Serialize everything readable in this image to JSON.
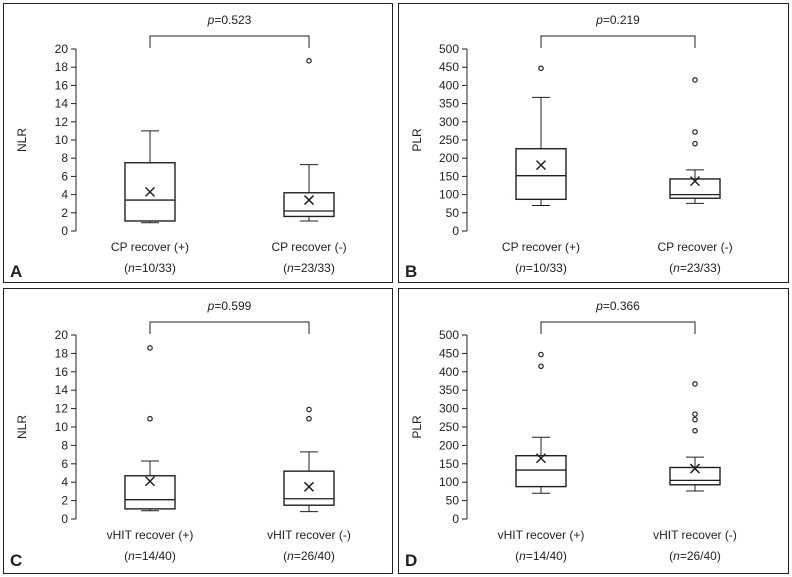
{
  "chart_data": [
    {
      "type": "box",
      "panel_letter": "A",
      "ylabel": "NLR",
      "ylim": [
        0,
        20
      ],
      "yticks": [
        0,
        2,
        4,
        6,
        8,
        10,
        12,
        14,
        16,
        18,
        20
      ],
      "p_prefix": "p",
      "p_value": "=0.523",
      "groups": [
        {
          "name": "CP recover (+)",
          "n_prefix": "(",
          "n_italic": "n",
          "n_suffix": "=10/33)",
          "whisker_low": 0.9,
          "q1": 1.1,
          "median": 3.4,
          "q3": 7.5,
          "whisker_high": 11.0,
          "mean": 4.3,
          "outliers": []
        },
        {
          "name": "CP recover (-)",
          "n_prefix": "(",
          "n_italic": "n",
          "n_suffix": "=23/33)",
          "whisker_low": 1.1,
          "q1": 1.6,
          "median": 2.2,
          "q3": 4.2,
          "whisker_high": 7.3,
          "mean": 3.4,
          "outliers": [
            18.7
          ]
        }
      ]
    },
    {
      "type": "box",
      "panel_letter": "B",
      "ylabel": "PLR",
      "ylim": [
        0,
        500
      ],
      "yticks": [
        0,
        50,
        100,
        150,
        200,
        250,
        300,
        350,
        400,
        450,
        500
      ],
      "p_prefix": "p",
      "p_value": "=0.219",
      "groups": [
        {
          "name": "CP recover (+)",
          "n_prefix": "(",
          "n_italic": "n",
          "n_suffix": "=10/33)",
          "whisker_low": 70,
          "q1": 87,
          "median": 152,
          "q3": 226,
          "whisker_high": 367,
          "mean": 181,
          "outliers": [
            447
          ]
        },
        {
          "name": "CP recover (-)",
          "n_prefix": "(",
          "n_italic": "n",
          "n_suffix": "=23/33)",
          "whisker_low": 76,
          "q1": 90,
          "median": 100,
          "q3": 143,
          "whisker_high": 168,
          "mean": 137,
          "outliers": [
            415,
            272,
            240
          ]
        }
      ]
    },
    {
      "type": "box",
      "panel_letter": "C",
      "ylabel": "NLR",
      "ylim": [
        0,
        20
      ],
      "yticks": [
        0,
        2,
        4,
        6,
        8,
        10,
        12,
        14,
        16,
        18,
        20
      ],
      "p_prefix": "p",
      "p_value": "=0.599",
      "groups": [
        {
          "name": "vHIT recover (+)",
          "n_prefix": "(",
          "n_italic": "n",
          "n_suffix": "=14/40)",
          "whisker_low": 0.9,
          "q1": 1.1,
          "median": 2.1,
          "q3": 4.7,
          "whisker_high": 6.3,
          "mean": 4.1,
          "outliers": [
            18.6,
            10.9
          ]
        },
        {
          "name": "vHIT recover (-)",
          "n_prefix": "(",
          "n_italic": "n",
          "n_suffix": "=26/40)",
          "whisker_low": 0.8,
          "q1": 1.5,
          "median": 2.2,
          "q3": 5.2,
          "whisker_high": 7.3,
          "mean": 3.5,
          "outliers": [
            11.9,
            10.9
          ]
        }
      ]
    },
    {
      "type": "box",
      "panel_letter": "D",
      "ylabel": "PLR",
      "ylim": [
        0,
        500
      ],
      "yticks": [
        0,
        50,
        100,
        150,
        200,
        250,
        300,
        350,
        400,
        450,
        500
      ],
      "p_prefix": "p",
      "p_value": "=0.366",
      "groups": [
        {
          "name": "vHIT recover (+)",
          "n_prefix": "(",
          "n_italic": "n",
          "n_suffix": "=14/40)",
          "whisker_low": 70,
          "q1": 88,
          "median": 133,
          "q3": 172,
          "whisker_high": 222,
          "mean": 165,
          "outliers": [
            447,
            415
          ]
        },
        {
          "name": "vHIT recover (-)",
          "n_prefix": "(",
          "n_italic": "n",
          "n_suffix": "=26/40)",
          "whisker_low": 76,
          "q1": 93,
          "median": 105,
          "q3": 140,
          "whisker_high": 168,
          "mean": 137,
          "outliers": [
            367,
            285,
            270,
            240
          ]
        }
      ]
    }
  ]
}
